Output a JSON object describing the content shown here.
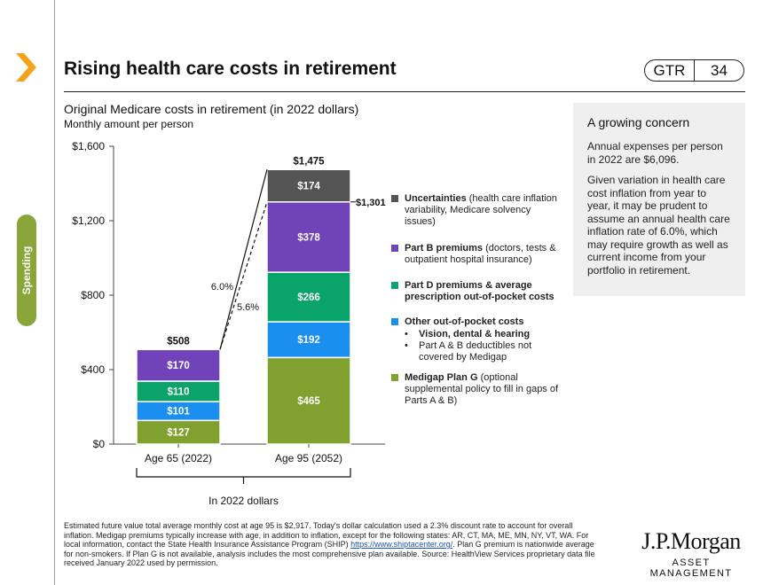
{
  "page": {
    "title": "Rising health care costs in retirement",
    "code": "GTR",
    "page_number": "34",
    "side_tab": "Spending"
  },
  "colors": {
    "uncertainties": "#545454",
    "part_b": "#7044b8",
    "part_d": "#0aa36a",
    "other_oop": "#1a8ff0",
    "medigap": "#80a12f",
    "side_tab": "#8aa63a",
    "chevron": "#f2a31a"
  },
  "chart_data": {
    "type": "bar",
    "stacked": true,
    "title": "Original Medicare costs in retirement (in 2022 dollars)",
    "subtitle": "Monthly amount per person",
    "categories": [
      "Age 65 (2022)",
      "Age 95 (2052)"
    ],
    "series": [
      {
        "name": "Medigap Plan G",
        "color_key": "medigap",
        "values": [
          127,
          465
        ],
        "labels": [
          "$127",
          "$465"
        ]
      },
      {
        "name": "Other out-of-pocket costs",
        "color_key": "other_oop",
        "values": [
          101,
          192
        ],
        "labels": [
          "$101",
          "$192"
        ]
      },
      {
        "name": "Part D premiums & average prescription out-of-pocket costs",
        "color_key": "part_d",
        "values": [
          110,
          266
        ],
        "labels": [
          "$110",
          "$266"
        ]
      },
      {
        "name": "Part B premiums",
        "color_key": "part_b",
        "values": [
          170,
          378
        ],
        "labels": [
          "$170",
          "$378"
        ]
      },
      {
        "name": "Uncertainties",
        "color_key": "uncertainties",
        "values": [
          0,
          174
        ],
        "labels": [
          "",
          "$174"
        ]
      }
    ],
    "totals": [
      "$508",
      "$1,475"
    ],
    "annotations": {
      "subtotal_label": "$1,301",
      "subtotal_value": 1301,
      "growth_total": "6.0%",
      "growth_excl_uncertainties": "5.6%"
    },
    "ylim": [
      0,
      1600
    ],
    "yticks": [
      0,
      400,
      800,
      1200,
      1600
    ],
    "ytick_labels": [
      "$0",
      "$400",
      "$800",
      "$1,200",
      "$1,600"
    ],
    "xlabel": "In 2022 dollars",
    "grid": false
  },
  "legend": {
    "uncertainties": {
      "bold": "Uncertainties",
      "rest": " (health care inflation variability, Medicare solvency issues)"
    },
    "part_b": {
      "bold": "Part B premiums",
      "rest": " (doctors, tests & outpatient hospital insurance)"
    },
    "part_d": {
      "bold": "Part D premiums & average prescription out-of-pocket costs",
      "rest": ""
    },
    "other_oop": {
      "bold": "Other out-of-pocket costs",
      "bullet1": "Vision, dental & hearing",
      "bullet2": "Part A & B deductibles not covered by Medigap"
    },
    "medigap": {
      "bold": "Medigap Plan G",
      "rest": " (optional supplemental policy to fill in gaps of Parts A & B)"
    }
  },
  "concern": {
    "heading": "A growing concern",
    "p1": "Annual expenses per person in 2022 are $6,096.",
    "p2": "Given variation in health care cost inflation from year to year, it may be prudent to assume an annual health care inflation rate of 6.0%, which may require growth as well as current income from your portfolio in retirement."
  },
  "footnote": {
    "before_link": "Estimated future value total average monthly cost at age 95 is $2,917. Today's dollar calculation used a 2.3% discount rate to account for overall inflation. Medigap premiums typically increase with age, in addition to inflation, except for the following states: AR, CT, MA, ME, MN, NY, VT, WA. For local information, contact the State Health Insurance Assistance Program (SHIP) ",
    "link": "https://www.shiptacenter.org/",
    "after_link": ". Plan G premium is nationwide average for non-smokers. If Plan G is not available, analysis includes the most comprehensive plan available. Source: HealthView Services proprietary data file received January 2022 used by permission."
  },
  "logo": {
    "line1": "J.P.Morgan",
    "line2": "ASSET MANAGEMENT"
  }
}
